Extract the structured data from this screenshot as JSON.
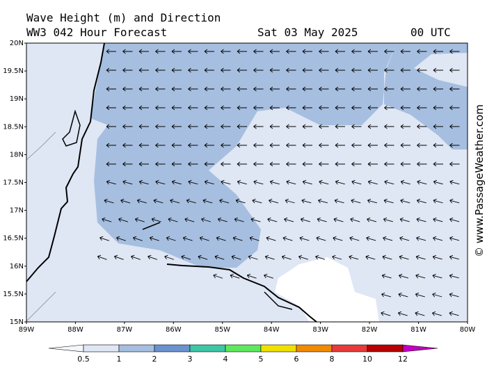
{
  "header": {
    "title": "Wave Height (m) and Direction",
    "subtitle": "WW3 042 Hour Forecast",
    "date": "Sat 03 May 2025",
    "time": "00 UTC"
  },
  "map": {
    "lat_labels": [
      "20N",
      "19.5N",
      "19N",
      "18.5N",
      "18N",
      "17.5N",
      "17N",
      "16.5N",
      "16N",
      "15.5N",
      "15N"
    ],
    "lon_labels": [
      "89W",
      "88W",
      "87W",
      "86W",
      "85W",
      "84W",
      "83W",
      "82W",
      "81W",
      "80W"
    ]
  },
  "colorbar": {
    "labels": [
      "0.5",
      "1",
      "2",
      "3",
      "4",
      "5",
      "6",
      "8",
      "10",
      "12"
    ],
    "colors": [
      "#f4f6fc",
      "#dfe6f4",
      "#a6bfe0",
      "#6b93d0",
      "#3ec6a6",
      "#5ee85e",
      "#f0e000",
      "#f08a00",
      "#e83a3a",
      "#b80000",
      "#c000c0"
    ]
  },
  "watermark": "© www.PassageWeather.com"
}
